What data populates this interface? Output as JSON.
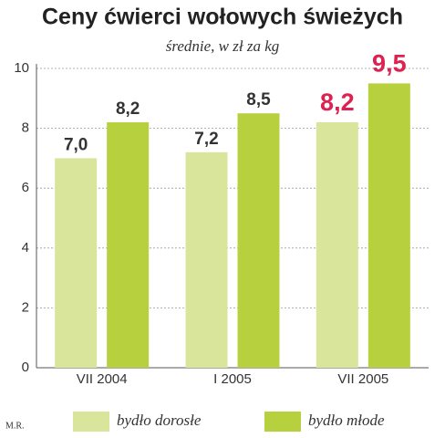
{
  "chart_data": {
    "type": "bar",
    "title": "Ceny ćwierci wołowych świeżych",
    "subtitle": "średnie, w zł za kg",
    "credit": "M.R.",
    "categories": [
      "VII 2004",
      "I 2005",
      "VII 2005"
    ],
    "series": [
      {
        "name": "bydło dorosłe",
        "color": "#d9e59b",
        "values": [
          7.0,
          7.2,
          8.2
        ],
        "value_labels": [
          "7,0",
          "7,2",
          "8,2"
        ]
      },
      {
        "name": "bydło młode",
        "color": "#b7d03d",
        "values": [
          8.2,
          8.5,
          9.5
        ],
        "value_labels": [
          "8,2",
          "8,5",
          "9,5"
        ]
      }
    ],
    "highlight_index": 2,
    "highlight_color": "#de2150",
    "ylim": [
      0,
      10
    ],
    "yticks": [
      0,
      2,
      4,
      6,
      8,
      10
    ],
    "grid": true
  }
}
